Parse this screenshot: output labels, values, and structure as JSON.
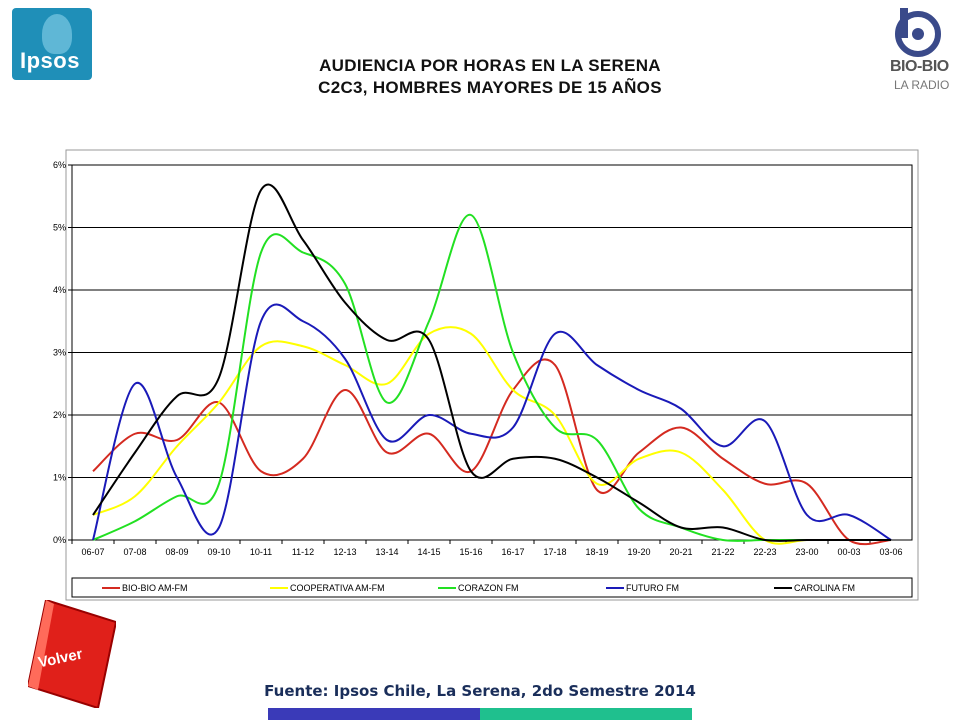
{
  "header": {
    "title_line1": "AUDIENCIA POR HORAS EN LA SERENA",
    "title_line2": "C2C3, HOMBRES MAYORES DE 15 AÑOS"
  },
  "logos": {
    "left": "Ipsos",
    "right_line1": "BIO-BIO",
    "right_line2": "LA RADIO"
  },
  "footer": {
    "source": "Fuente: Ipsos Chile, La Serena, 2do Semestre 2014",
    "back_button": "Volver"
  },
  "chart_data": {
    "type": "line",
    "categories": [
      "06-07",
      "07-08",
      "08-09",
      "09-10",
      "10-11",
      "11-12",
      "12-13",
      "13-14",
      "14-15",
      "15-16",
      "16-17",
      "17-18",
      "18-19",
      "19-20",
      "20-21",
      "21-22",
      "22-23",
      "23-00",
      "00-03",
      "03-06"
    ],
    "yticks": [
      "0%",
      "1%",
      "2%",
      "3%",
      "4%",
      "5%",
      "6%"
    ],
    "ylim": [
      0,
      6
    ],
    "grid": true,
    "legend_position": "bottom",
    "series": [
      {
        "name": "BIO-BIO AM-FM",
        "color": "#d42a20",
        "values": [
          1.1,
          1.7,
          1.6,
          2.2,
          1.1,
          1.3,
          2.4,
          1.4,
          1.7,
          1.1,
          2.4,
          2.8,
          0.8,
          1.4,
          1.8,
          1.3,
          0.9,
          0.9,
          0.0,
          0.0
        ]
      },
      {
        "name": "COOPERATIVA AM-FM",
        "color": "#ffff00",
        "values": [
          0.4,
          0.7,
          1.5,
          2.2,
          3.1,
          3.1,
          2.8,
          2.5,
          3.3,
          3.3,
          2.4,
          2.0,
          0.9,
          1.3,
          1.4,
          0.8,
          0.0,
          0.0,
          0.0,
          0.0
        ]
      },
      {
        "name": "CORAZON FM",
        "color": "#22e022",
        "values": [
          0.0,
          0.3,
          0.7,
          0.9,
          4.6,
          4.6,
          4.1,
          2.2,
          3.5,
          5.2,
          3.0,
          1.8,
          1.6,
          0.5,
          0.2,
          0.0,
          0.0,
          0.0,
          0.0,
          0.0
        ]
      },
      {
        "name": "FUTURO FM",
        "color": "#1a1ab8",
        "values": [
          0.0,
          2.5,
          1.0,
          0.2,
          3.5,
          3.5,
          2.9,
          1.6,
          2.0,
          1.7,
          1.8,
          3.3,
          2.8,
          2.4,
          2.1,
          1.5,
          1.9,
          0.4,
          0.4,
          0.0
        ]
      },
      {
        "name": "CAROLINA FM",
        "color": "#000000",
        "values": [
          0.4,
          1.4,
          2.3,
          2.6,
          5.6,
          4.8,
          3.8,
          3.2,
          3.2,
          1.1,
          1.3,
          1.3,
          1.0,
          0.6,
          0.2,
          0.2,
          0.0,
          0.0,
          0.0,
          0.0
        ]
      }
    ]
  }
}
